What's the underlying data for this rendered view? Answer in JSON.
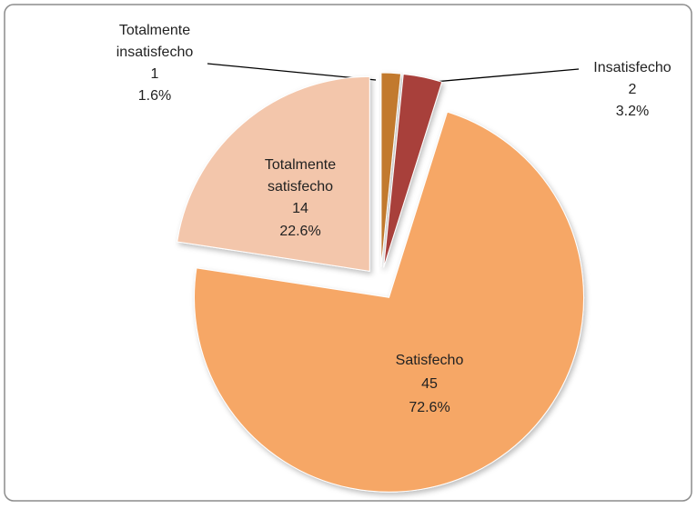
{
  "chart_data": {
    "type": "pie",
    "categories": [
      "Totalmente insatisfecho",
      "Insatisfecho",
      "Satisfecho",
      "Totalmente satisfecho"
    ],
    "values": [
      1,
      2,
      45,
      14
    ],
    "percentages": [
      1.6,
      3.2,
      72.6,
      22.6
    ],
    "percentage_labels": [
      "1.6%",
      "3.2%",
      "72.6%",
      "22.6%"
    ],
    "colors": [
      "#c27a2e",
      "#a8403b",
      "#f6a766",
      "#f3c6ab"
    ]
  }
}
